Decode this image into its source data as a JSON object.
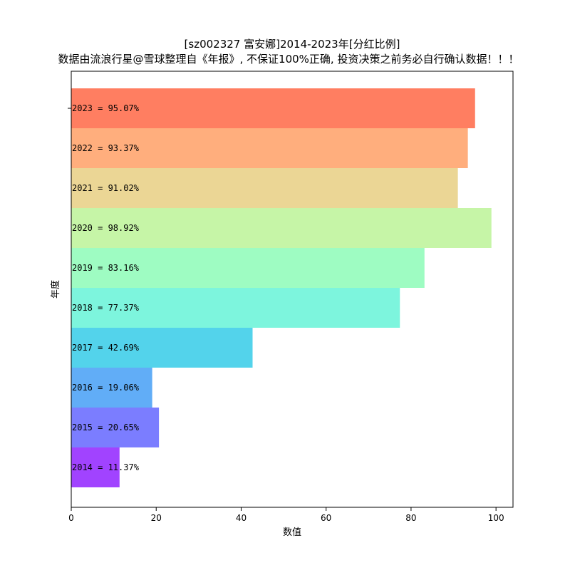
{
  "chart_data": {
    "type": "bar",
    "orientation": "horizontal",
    "title_line1": "[sz002327 富安娜]2014-2023年[分红比例]",
    "title_line2": "数据由流浪行星@雪球整理自《年报》, 不保证100%正确, 投资决策之前务必自行确认数据！！！",
    "xlabel": "数值",
    "ylabel": "年度",
    "xlim": [
      0,
      104
    ],
    "xticks": [
      0,
      20,
      40,
      60,
      80,
      100
    ],
    "grid": false,
    "categories": [
      "2023",
      "2022",
      "2021",
      "2020",
      "2019",
      "2018",
      "2017",
      "2016",
      "2015",
      "2014"
    ],
    "values": [
      95.07,
      93.37,
      91.02,
      98.92,
      83.16,
      77.37,
      42.69,
      19.06,
      20.65,
      11.37
    ],
    "labels": [
      "2023 = 95.07%",
      "2022 = 93.37%",
      "2021 = 91.02%",
      "2020 = 98.92%",
      "2019 = 83.16%",
      "2018 = 77.37%",
      "2017 = 42.69%",
      "2016 = 19.06%",
      "2015 = 20.65%",
      "2014 = 11.37%"
    ],
    "colors": [
      "#ff5e3a",
      "#ff9a5c",
      "#e6cc7a",
      "#b8f291",
      "#86fbb3",
      "#5cf2d4",
      "#28c8e6",
      "#3a99f5",
      "#5a5cff",
      "#8a14ff"
    ],
    "bar_opacity": 0.8
  }
}
